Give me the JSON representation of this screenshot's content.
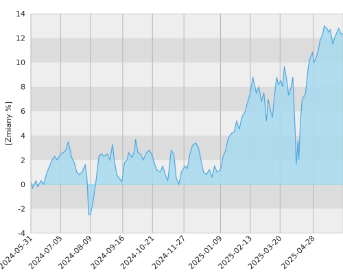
{
  "chart_data": {
    "type": "area",
    "y_label": "[Zmiany %]",
    "x": [
      "2024-05-31",
      "2024-06-02",
      "2024-06-06",
      "2024-06-08",
      "2024-06-12",
      "2024-06-15",
      "2024-06-19",
      "2024-06-22",
      "2024-06-25",
      "2024-06-28",
      "2024-07-01",
      "2024-07-05",
      "2024-07-08",
      "2024-07-11",
      "2024-07-14",
      "2024-07-18",
      "2024-07-21",
      "2024-07-24",
      "2024-07-27",
      "2024-07-30",
      "2024-08-03",
      "2024-08-05",
      "2024-08-07",
      "2024-08-09",
      "2024-08-12",
      "2024-08-16",
      "2024-08-19",
      "2024-08-22",
      "2024-08-25",
      "2024-08-29",
      "2024-09-01",
      "2024-09-04",
      "2024-09-06",
      "2024-09-09",
      "2024-09-12",
      "2024-09-15",
      "2024-09-18",
      "2024-09-21",
      "2024-09-23",
      "2024-09-27",
      "2024-09-30",
      "2024-10-01",
      "2024-10-04",
      "2024-10-07",
      "2024-10-10",
      "2024-10-14",
      "2024-10-17",
      "2024-10-20",
      "2024-10-23",
      "2024-10-26",
      "2024-10-30",
      "2024-11-02",
      "2024-11-05",
      "2024-11-08",
      "2024-11-12",
      "2024-11-15",
      "2024-11-18",
      "2024-11-21",
      "2024-11-24",
      "2024-11-28",
      "2024-12-01",
      "2024-12-04",
      "2024-12-07",
      "2024-12-11",
      "2024-12-14",
      "2024-12-17",
      "2024-12-20",
      "2024-12-23",
      "2024-12-27",
      "2024-12-30",
      "2025-01-02",
      "2025-01-05",
      "2025-01-09",
      "2025-01-12",
      "2025-01-15",
      "2025-01-18",
      "2025-01-22",
      "2025-01-25",
      "2025-01-28",
      "2025-01-31",
      "2025-02-03",
      "2025-02-07",
      "2025-02-10",
      "2025-02-13",
      "2025-02-16",
      "2025-02-20",
      "2025-02-23",
      "2025-02-26",
      "2025-03-01",
      "2025-03-04",
      "2025-03-06",
      "2025-03-09",
      "2025-03-11",
      "2025-03-13",
      "2025-03-16",
      "2025-03-18",
      "2025-03-21",
      "2025-03-23",
      "2025-03-25",
      "2025-03-28",
      "2025-03-30",
      "2025-04-02",
      "2025-04-04",
      "2025-04-07",
      "2025-04-08",
      "2025-04-10",
      "2025-04-11",
      "2025-04-13",
      "2025-04-15",
      "2025-04-17",
      "2025-04-19",
      "2025-04-22",
      "2025-04-24",
      "2025-04-27",
      "2025-04-29",
      "2025-05-02",
      "2025-05-04",
      "2025-05-06",
      "2025-05-09",
      "2025-05-11",
      "2025-05-14",
      "2025-05-16",
      "2025-05-18",
      "2025-05-21",
      "2025-05-23",
      "2025-05-26",
      "2025-05-28",
      "2025-05-31",
      "2025-06-02"
    ],
    "values": [
      0.2,
      -0.3,
      0.3,
      -0.2,
      0.3,
      0.0,
      1.0,
      1.5,
      2.0,
      2.3,
      2.0,
      2.5,
      2.6,
      2.8,
      3.5,
      2.2,
      1.8,
      1.0,
      0.8,
      1.0,
      1.6,
      0.5,
      -2.5,
      -2.5,
      -1.5,
      0.5,
      2.3,
      2.5,
      2.3,
      2.5,
      2.0,
      3.3,
      2.0,
      0.8,
      0.5,
      0.2,
      1.8,
      2.0,
      2.6,
      2.2,
      2.8,
      3.7,
      2.6,
      2.5,
      2.0,
      2.6,
      2.8,
      2.5,
      1.8,
      1.2,
      1.0,
      1.5,
      0.8,
      0.3,
      2.8,
      2.5,
      0.5,
      0.0,
      1.0,
      1.5,
      1.3,
      2.5,
      3.2,
      3.4,
      3.0,
      2.0,
      1.0,
      0.8,
      1.2,
      0.6,
      1.5,
      1.0,
      1.2,
      2.3,
      2.8,
      3.8,
      4.2,
      4.3,
      5.2,
      4.5,
      5.5,
      6.0,
      6.8,
      7.5,
      8.8,
      7.5,
      8.0,
      6.8,
      7.5,
      5.2,
      7.0,
      6.0,
      5.5,
      7.0,
      8.8,
      8.2,
      8.5,
      8.0,
      9.7,
      8.5,
      7.3,
      8.0,
      8.8,
      4.0,
      1.6,
      3.6,
      2.0,
      5.2,
      7.0,
      7.2,
      7.5,
      9.5,
      10.3,
      10.8,
      10.0,
      10.5,
      11.0,
      11.8,
      12.3,
      13.0,
      12.8,
      12.5,
      12.7,
      11.5,
      12.0,
      12.5,
      12.8,
      12.3,
      12.4
    ],
    "color": "#4da6e0",
    "xlim": [
      "2024-05-31",
      "2025-06-02"
    ],
    "xticks": [
      "2024-05-31",
      "2024-07-05",
      "2024-08-09",
      "2024-09-16",
      "2024-10-21",
      "2024-11-27",
      "2025-01-09",
      "2025-02-13",
      "2025-03-20",
      "2025-04-28"
    ],
    "ylim": [
      -4,
      14
    ],
    "yticks": [
      -4,
      -2,
      0,
      2,
      4,
      6,
      8,
      10,
      12,
      14
    ],
    "grid": true
  }
}
